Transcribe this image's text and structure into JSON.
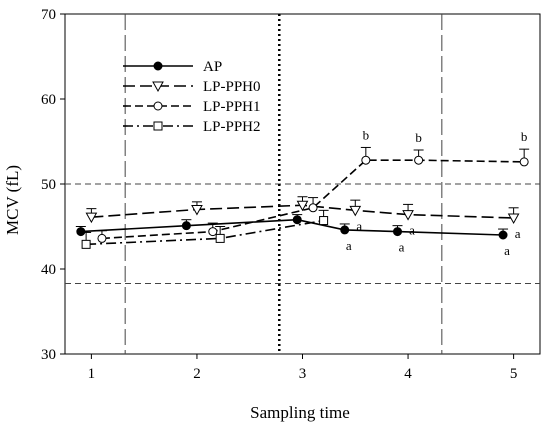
{
  "chart_data": {
    "type": "line",
    "xlabel": "Sampling time",
    "ylabel": "MCV (fL)",
    "xlim": [
      0.75,
      5.25
    ],
    "ylim": [
      30,
      70
    ],
    "xticks": [
      1,
      2,
      3,
      4,
      5
    ],
    "yticks": [
      30,
      40,
      50,
      60,
      70
    ],
    "grid": false,
    "legend_position": "top-left",
    "reference_lines": {
      "horizontal_dashed": [
        50,
        38.3
      ],
      "vertical_dashed": [
        1.32,
        4.32
      ],
      "vertical_dotted": [
        2.78
      ]
    },
    "series": [
      {
        "name": "AP",
        "line_style": "solid",
        "marker": "filled-circle",
        "color": "#000000",
        "x": [
          0.9,
          1.9,
          2.95,
          3.4,
          3.9,
          4.9
        ],
        "y": [
          44.4,
          45.1,
          45.8,
          44.6,
          44.4,
          44.0
        ],
        "error": [
          0.6,
          0.7,
          0.6,
          0.7,
          0.7,
          0.7
        ],
        "annotations": [
          null,
          null,
          null,
          "a",
          "a",
          "a"
        ]
      },
      {
        "name": "LP-PPH0",
        "line_style": "long-dash",
        "marker": "open-triangle-down",
        "color": "#000000",
        "x": [
          1.0,
          2.0,
          3.0,
          3.5,
          4.0,
          5.0
        ],
        "y": [
          46.1,
          47.0,
          47.5,
          46.9,
          46.4,
          46.0
        ],
        "error": [
          1.0,
          0.9,
          1.0,
          1.2,
          1.2,
          1.2
        ],
        "annotations": [
          null,
          null,
          null,
          "a",
          "a",
          "a"
        ]
      },
      {
        "name": "LP-PPH1",
        "line_style": "dashed",
        "marker": "open-circle",
        "color": "#000000",
        "x": [
          1.1,
          2.15,
          3.1,
          3.6,
          4.1,
          5.1
        ],
        "y": [
          43.6,
          44.4,
          47.2,
          52.8,
          52.8,
          52.6
        ],
        "error": [
          0.9,
          1.0,
          1.2,
          1.5,
          1.2,
          1.5
        ],
        "annotations": [
          null,
          null,
          null,
          "b",
          "b",
          "b"
        ]
      },
      {
        "name": "LP-PPH2",
        "line_style": "dash-dot",
        "marker": "open-square",
        "color": "#000000",
        "x": [
          0.95,
          2.22,
          3.2
        ],
        "y": [
          42.9,
          43.6,
          45.7
        ],
        "error": [
          1.4,
          1.4,
          1.2
        ],
        "annotations": [
          null,
          null,
          null
        ]
      }
    ]
  }
}
